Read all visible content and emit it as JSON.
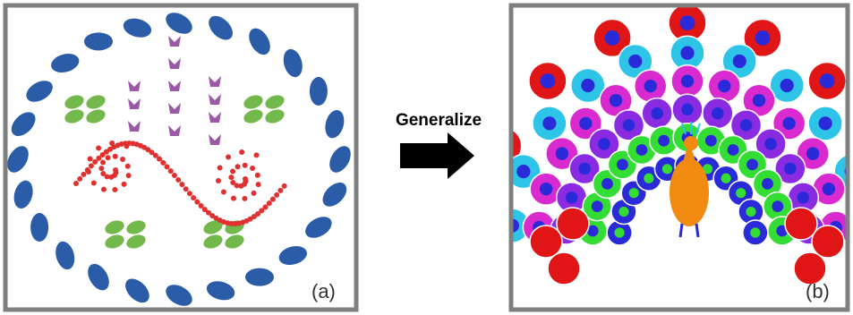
{
  "panels": [
    {
      "label": "(a)"
    },
    {
      "label": "(b)"
    }
  ],
  "arrow": {
    "label": "Generalize"
  }
}
